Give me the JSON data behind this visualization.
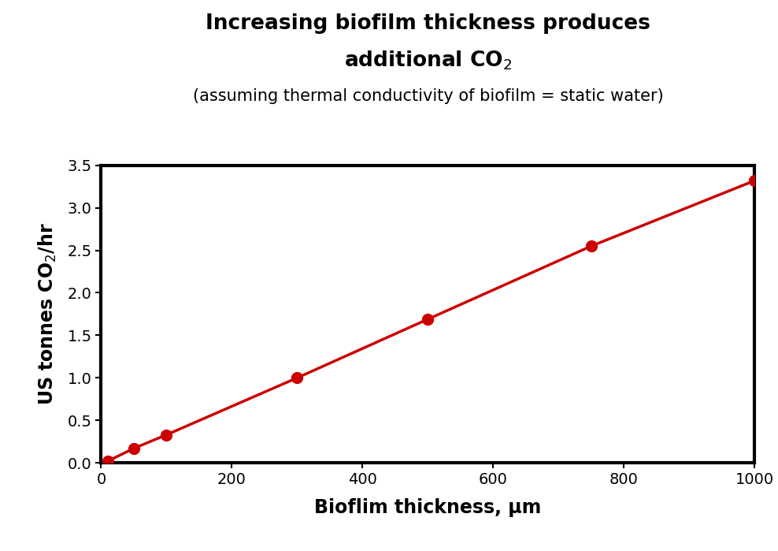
{
  "x": [
    10,
    50,
    100,
    300,
    500,
    750,
    1000
  ],
  "y": [
    0.02,
    0.17,
    0.33,
    1.0,
    1.69,
    2.55,
    3.32
  ],
  "line_color": "#CC0000",
  "marker_color": "#CC0000",
  "marker_size": 10,
  "line_width": 2.5,
  "title_line1": "Increasing biofilm thickness produces",
  "title_line2": "additional CO$_2$",
  "subtitle": "(assuming thermal conductivity of biofilm = static water)",
  "xlabel": "Bioflim thickness, μm",
  "ylabel": "US tonnes CO$_2$/hr",
  "xlim": [
    0,
    1000
  ],
  "ylim": [
    0,
    3.5
  ],
  "xticks": [
    0,
    200,
    400,
    600,
    800,
    1000
  ],
  "yticks": [
    0.0,
    0.5,
    1.0,
    1.5,
    2.0,
    2.5,
    3.0,
    3.5
  ],
  "background_color": "#ffffff",
  "title_fontsize": 19,
  "subtitle_fontsize": 15,
  "label_fontsize": 17,
  "tick_fontsize": 14,
  "spine_linewidth": 3.0
}
